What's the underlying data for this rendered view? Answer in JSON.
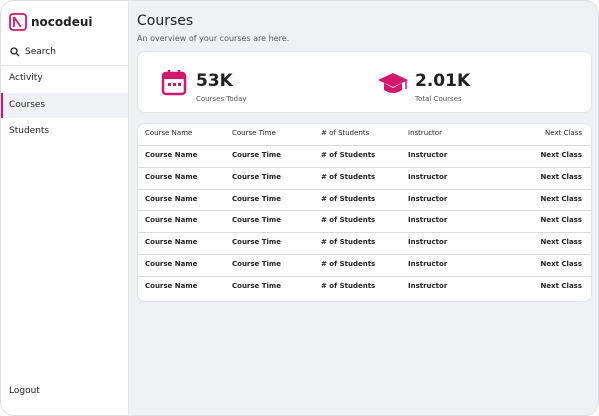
{
  "sidebar": {
    "logo": "nocodeui",
    "search": "Search",
    "nav": [
      "Activity",
      "Courses",
      "Students"
    ],
    "active": 1,
    "logout": "Logout"
  },
  "header": {
    "title": "Courses",
    "subtitle": "An overview of your courses are here."
  },
  "stats": [
    {
      "value": "53K",
      "label": "Courses Today"
    },
    {
      "value": "2.01K",
      "label": "Total Courses"
    }
  ],
  "table": {
    "columns": [
      "Course Name",
      "Course Time",
      "# of Students",
      "Instructor",
      "Next Class"
    ],
    "rows": [
      [
        "Course Name",
        "Course Time",
        "# of Students",
        "Instructor",
        "Next Class"
      ],
      [
        "Course Name",
        "Course Time",
        "# of Students",
        "Instructor",
        "Next Class"
      ],
      [
        "Course Name",
        "Course Time",
        "# of Students",
        "Instructor",
        "Next Class"
      ],
      [
        "Course Name",
        "Course Time",
        "# of Students",
        "Instructor",
        "Next Class"
      ],
      [
        "Course Name",
        "Course Time",
        "# of Students",
        "Instructor",
        "Next Class"
      ],
      [
        "Course Name",
        "Course Time",
        "# of Students",
        "Instructor",
        "Next Class"
      ],
      [
        "Course Name",
        "Course Time",
        "# of Students",
        "Instructor",
        "Next Class"
      ]
    ]
  }
}
